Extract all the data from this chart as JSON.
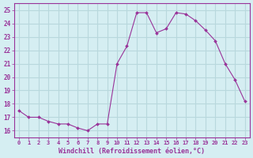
{
  "x": [
    0,
    1,
    2,
    3,
    4,
    5,
    6,
    7,
    8,
    9,
    10,
    11,
    12,
    13,
    14,
    15,
    16,
    17,
    18,
    19,
    20,
    21,
    22,
    23
  ],
  "y": [
    17.5,
    17.0,
    17.0,
    16.7,
    16.5,
    16.5,
    16.2,
    16.0,
    16.5,
    16.5,
    21.0,
    22.3,
    24.8,
    24.8,
    23.3,
    23.6,
    24.8,
    24.7,
    24.2,
    23.5,
    22.7,
    21.0,
    19.8,
    18.2
  ],
  "line_color": "#993399",
  "marker": "D",
  "marker_size": 2,
  "background_color": "#d5eef2",
  "grid_color": "#b8d8dd",
  "xlabel": "Windchill (Refroidissement éolien,°C)",
  "xlabel_color": "#993399",
  "tick_color": "#993399",
  "ylim": [
    15.5,
    25.5
  ],
  "xlim": [
    -0.5,
    23.5
  ],
  "yticks": [
    16,
    17,
    18,
    19,
    20,
    21,
    22,
    23,
    24,
    25
  ],
  "xticks": [
    0,
    1,
    2,
    3,
    4,
    5,
    6,
    7,
    8,
    9,
    10,
    11,
    12,
    13,
    14,
    15,
    16,
    17,
    18,
    19,
    20,
    21,
    22,
    23
  ],
  "figsize": [
    3.2,
    2.0
  ],
  "dpi": 100
}
